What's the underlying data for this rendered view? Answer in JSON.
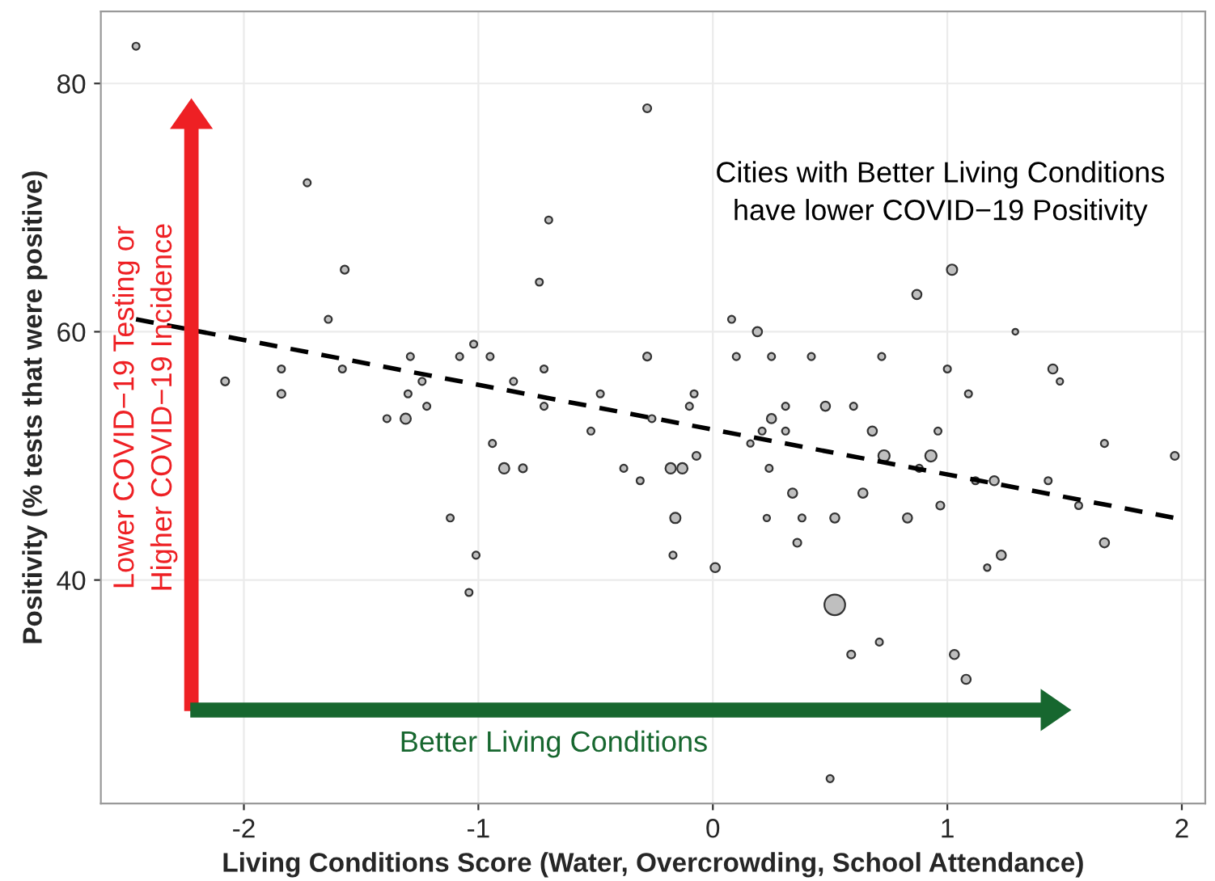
{
  "chart_data": {
    "type": "scatter",
    "xlabel": "Living Conditions Score (Water, Overcrowding, School Attendance)",
    "ylabel": "Positivity (% tests that were positive)",
    "annotations": [
      "Cities with Better Living Conditions\nhave lower COVID−19 Positivity",
      "Lower COVID−19 Testing or\nHigher COVID−19 Incidence",
      "Better Living Conditions"
    ],
    "xlim": [
      -2.61,
      2.1
    ],
    "ylim": [
      22,
      85.8
    ],
    "xticks": [
      -2,
      -1,
      0,
      1,
      2
    ],
    "yticks": [
      40,
      60,
      80
    ],
    "grid": true,
    "marker": "circle",
    "series": [
      {
        "color": "#bfbfbf",
        "x": [
          -2.46,
          -1.73,
          -1.57,
          -1.64,
          -2.08,
          -1.84,
          -1.84,
          -1.58,
          -1.29,
          -1.3,
          -1.24,
          -1.22,
          -1.39,
          -1.31,
          -1.08,
          -1.02,
          -0.95,
          -0.85,
          -0.72,
          -0.72,
          -0.74,
          -0.7,
          -0.28,
          -0.28,
          -0.48,
          -0.52,
          -0.26,
          -0.94,
          -0.89,
          -0.81,
          -1.12,
          -1.01,
          -1.04,
          -0.38,
          -0.31,
          -0.08,
          -0.1,
          -0.07,
          -0.18,
          -0.13,
          -0.16,
          -0.17,
          0.01,
          0.08,
          0.19,
          0.1,
          0.25,
          0.42,
          0.72,
          0.87,
          1.02,
          1.29,
          1.0,
          1.09,
          1.45,
          1.48,
          0.31,
          0.48,
          0.6,
          0.25,
          0.21,
          0.31,
          0.68,
          0.96,
          0.16,
          0.24,
          0.73,
          0.93,
          0.88,
          1.12,
          1.2,
          1.43,
          1.67,
          1.97,
          1.56,
          0.34,
          0.64,
          0.97,
          0.23,
          0.38,
          0.52,
          0.83,
          0.36,
          1.67,
          1.23,
          1.17,
          0.52,
          0.71,
          0.59,
          1.03,
          1.08,
          0.5
        ],
        "values": [
          83,
          72,
          65,
          61,
          56,
          57,
          55,
          57,
          58,
          55,
          56,
          54,
          53,
          53,
          58,
          59,
          58,
          56,
          57,
          54,
          64,
          69,
          78,
          58,
          55,
          52,
          53,
          51,
          49,
          49,
          45,
          42,
          39,
          49,
          48,
          55,
          54,
          50,
          49,
          49,
          45,
          42,
          41,
          61,
          60,
          58,
          58,
          58,
          58,
          63,
          65,
          60,
          57,
          55,
          57,
          56,
          54,
          54,
          54,
          53,
          52,
          52,
          52,
          52,
          51,
          49,
          50,
          50,
          49,
          48,
          48,
          48,
          51,
          50,
          46,
          47,
          47,
          46,
          45,
          45,
          45,
          45,
          43,
          43,
          42,
          41,
          38,
          35,
          34,
          34,
          32,
          24
        ],
        "sizes": [
          0.12,
          0.12,
          0.15,
          0.12,
          0.15,
          0.12,
          0.15,
          0.12,
          0.12,
          0.12,
          0.12,
          0.12,
          0.12,
          0.25,
          0.12,
          0.12,
          0.12,
          0.12,
          0.12,
          0.12,
          0.12,
          0.12,
          0.15,
          0.15,
          0.12,
          0.12,
          0.12,
          0.12,
          0.25,
          0.15,
          0.12,
          0.12,
          0.12,
          0.12,
          0.12,
          0.12,
          0.12,
          0.15,
          0.25,
          0.25,
          0.25,
          0.12,
          0.2,
          0.12,
          0.2,
          0.12,
          0.12,
          0.12,
          0.12,
          0.2,
          0.25,
          0.08,
          0.12,
          0.12,
          0.2,
          0.1,
          0.12,
          0.2,
          0.12,
          0.2,
          0.12,
          0.12,
          0.2,
          0.12,
          0.1,
          0.12,
          0.3,
          0.3,
          0.12,
          0.12,
          0.2,
          0.12,
          0.12,
          0.15,
          0.12,
          0.2,
          0.2,
          0.15,
          0.1,
          0.12,
          0.2,
          0.2,
          0.15,
          0.2,
          0.2,
          0.1,
          1,
          0.12,
          0.15,
          0.2,
          0.2,
          0.12
        ]
      },
      {
        "type": "line",
        "color": "#000000",
        "line_style": "dashed",
        "marker": "none",
        "x": [
          -2.46,
          1.97
        ],
        "values": [
          61,
          45
        ]
      }
    ]
  }
}
